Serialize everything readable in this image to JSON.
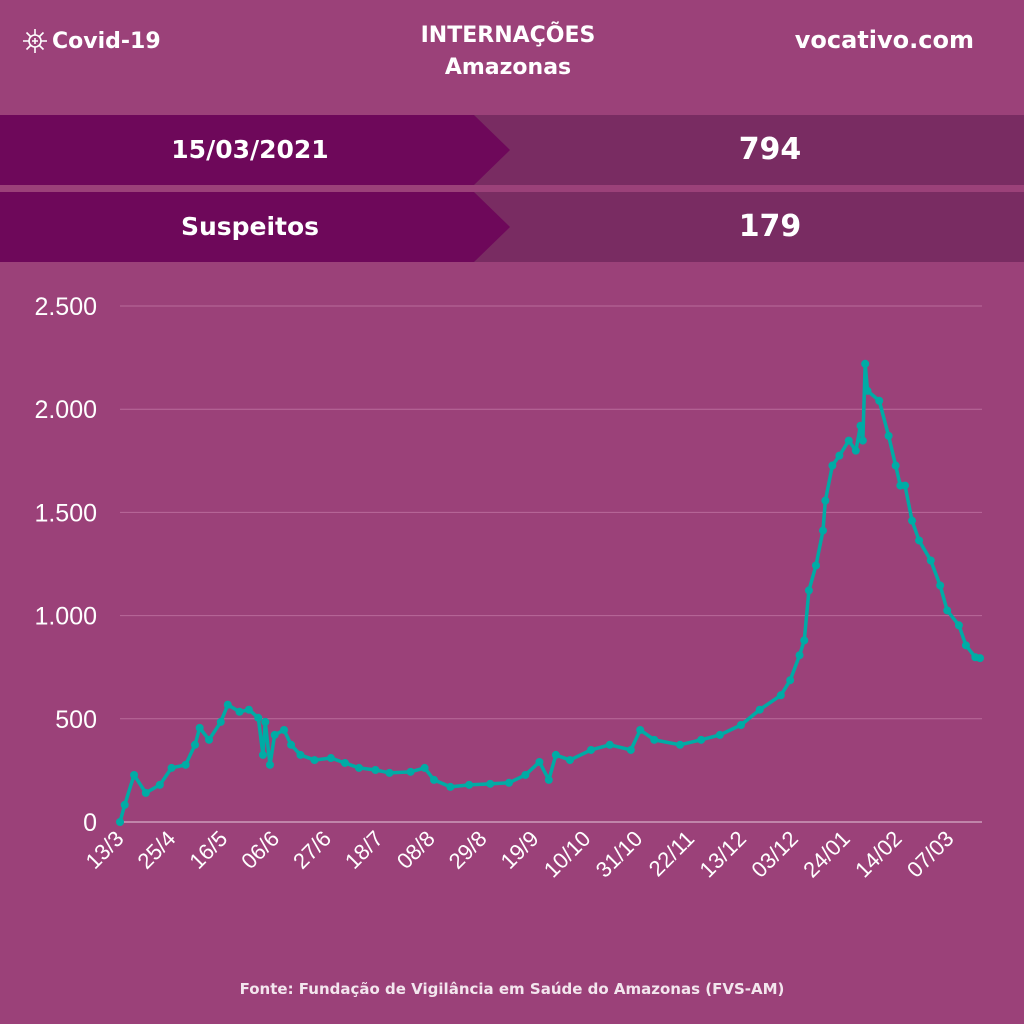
{
  "header": {
    "brand": "Covid-19",
    "title": "INTERNAÇÕES",
    "subtitle": "Amazonas",
    "site": "vocativo.com"
  },
  "stats": [
    {
      "label": "15/03/2021",
      "value": "794"
    },
    {
      "label": "Suspeitos",
      "value": "179"
    }
  ],
  "source": "Fonte: Fundação de Vigilância em Saúde do Amazonas (FVS-AM)",
  "colors": {
    "background": "#9B4179",
    "band_dark": "#6E085A",
    "band_light": "#792C62",
    "line": "#00ABA5"
  },
  "chart_data": {
    "type": "line",
    "title": "INTERNAÇÕES Amazonas",
    "xlabel": "",
    "ylabel": "",
    "ylim": [
      0,
      2500
    ],
    "xlim": [
      0,
      367
    ],
    "x_unit": "days since 13/3/2020",
    "yticks": [
      0,
      500,
      1000,
      1500,
      2000,
      2500
    ],
    "ytick_labels": [
      "0",
      "500",
      "1.000",
      "1.500",
      "2.000",
      "2.500"
    ],
    "xtick_labels": [
      "13/3",
      "25/4",
      "16/5",
      "06/6",
      "27/6",
      "18/7",
      "08/8",
      "29/8",
      "19/9",
      "10/10",
      "31/10",
      "22/11",
      "13/12",
      "03/12",
      "24/01",
      "14/02",
      "07/03"
    ],
    "grid": true,
    "series": [
      {
        "name": "Internações",
        "points": [
          [
            0,
            0
          ],
          [
            2,
            83
          ],
          [
            6,
            228
          ],
          [
            11,
            141
          ],
          [
            17,
            180
          ],
          [
            22,
            262
          ],
          [
            28,
            277
          ],
          [
            32,
            374
          ],
          [
            34,
            456
          ],
          [
            38,
            398
          ],
          [
            43,
            485
          ],
          [
            46,
            568
          ],
          [
            51,
            534
          ],
          [
            55,
            544
          ],
          [
            59,
            505
          ],
          [
            61,
            325
          ],
          [
            62,
            485
          ],
          [
            64,
            277
          ],
          [
            66,
            422
          ],
          [
            70,
            446
          ],
          [
            73,
            374
          ],
          [
            77,
            325
          ],
          [
            83,
            300
          ],
          [
            90,
            310
          ],
          [
            96,
            286
          ],
          [
            102,
            262
          ],
          [
            109,
            252
          ],
          [
            115,
            238
          ],
          [
            124,
            243
          ],
          [
            130,
            262
          ],
          [
            134,
            204
          ],
          [
            141,
            170
          ],
          [
            149,
            180
          ],
          [
            158,
            185
          ],
          [
            166,
            190
          ],
          [
            173,
            228
          ],
          [
            179,
            291
          ],
          [
            183,
            204
          ],
          [
            186,
            325
          ],
          [
            192,
            300
          ],
          [
            201,
            349
          ],
          [
            209,
            374
          ],
          [
            218,
            349
          ],
          [
            222,
            446
          ],
          [
            228,
            398
          ],
          [
            239,
            374
          ],
          [
            248,
            398
          ],
          [
            256,
            422
          ],
          [
            265,
            470
          ],
          [
            273,
            544
          ],
          [
            282,
            614
          ],
          [
            286,
            687
          ],
          [
            290,
            808
          ],
          [
            292,
            880
          ],
          [
            294,
            1122
          ],
          [
            297,
            1243
          ],
          [
            300,
            1412
          ],
          [
            301,
            1557
          ],
          [
            304,
            1727
          ],
          [
            307,
            1775
          ],
          [
            311,
            1848
          ],
          [
            314,
            1799
          ],
          [
            316,
            1920
          ],
          [
            317,
            1848
          ],
          [
            318,
            2220
          ],
          [
            319,
            2089
          ],
          [
            324,
            2041
          ],
          [
            328,
            1871
          ],
          [
            331,
            1727
          ],
          [
            333,
            1630
          ],
          [
            335,
            1630
          ],
          [
            338,
            1460
          ],
          [
            341,
            1364
          ],
          [
            346,
            1267
          ],
          [
            350,
            1146
          ],
          [
            353,
            1025
          ],
          [
            358,
            953
          ],
          [
            361,
            856
          ],
          [
            365,
            798
          ],
          [
            367,
            794
          ]
        ]
      }
    ]
  }
}
